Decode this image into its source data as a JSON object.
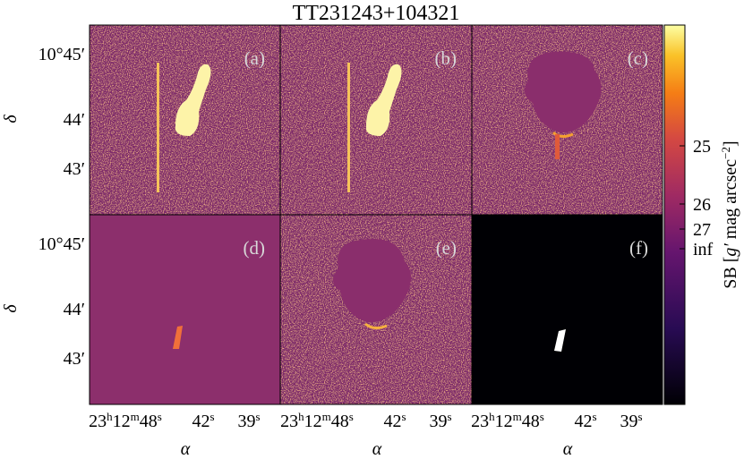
{
  "title": "TT231243+104321",
  "panels": [
    "(a)",
    "(b)",
    "(c)",
    "(d)",
    "(e)",
    "(f)"
  ],
  "y_axis": {
    "label": "δ",
    "ticks": [
      "10°45′",
      "44′",
      "43′"
    ]
  },
  "x_axis": {
    "label": "α",
    "ticks": [
      [
        [
          "23",
          "h"
        ],
        [
          "12",
          "m"
        ],
        [
          "48",
          "s"
        ]
      ],
      [
        [
          "42",
          "s"
        ]
      ],
      [
        [
          "39",
          "s"
        ]
      ]
    ]
  },
  "colorbar": {
    "label": [
      "SB [",
      "g′",
      " mag arcsec",
      "−2",
      "]"
    ],
    "ticks": [
      "25",
      "26",
      "27",
      "inf"
    ]
  }
}
